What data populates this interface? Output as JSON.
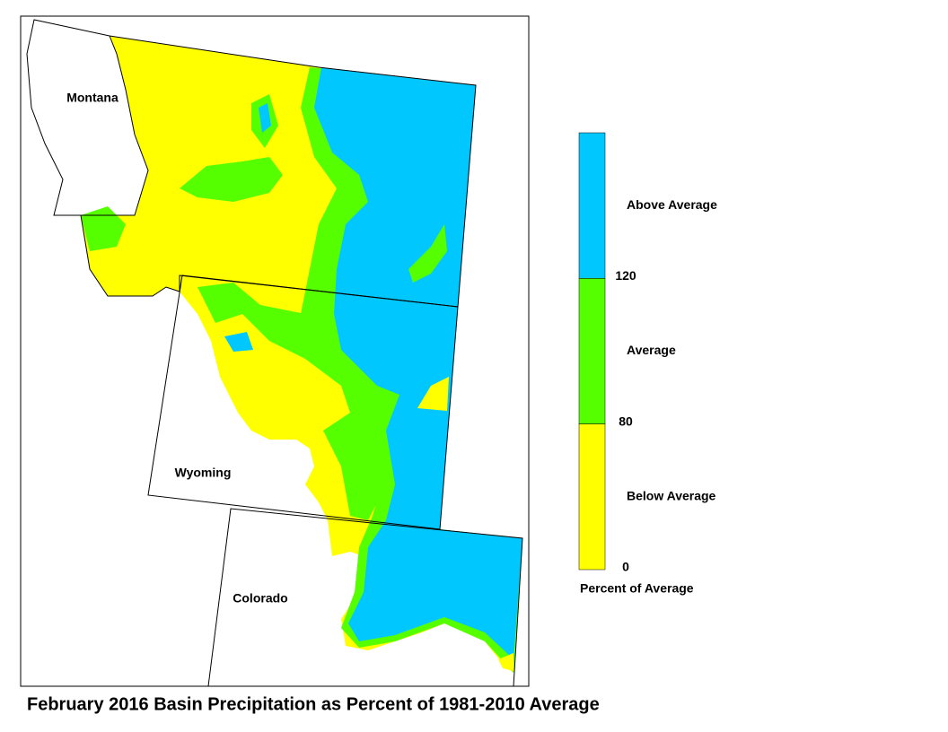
{
  "title": "February 2016 Basin Precipitation as Percent of 1981-2010 Average",
  "map": {
    "labels": [
      {
        "name": "Montana"
      },
      {
        "name": "Wyoming"
      },
      {
        "name": "Colorado"
      }
    ]
  },
  "legend": {
    "title": "Percent of Average",
    "classes": [
      {
        "label": "Above Average",
        "color": "#00c8ff"
      },
      {
        "label": "Average",
        "color": "#55ff00"
      },
      {
        "label": "Below Average",
        "color": "#ffff00"
      }
    ],
    "breaks": [
      120,
      80,
      0
    ]
  }
}
